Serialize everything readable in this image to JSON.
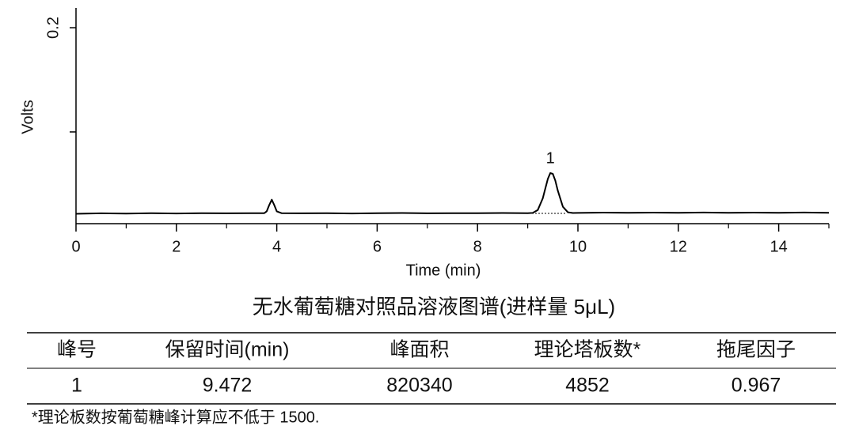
{
  "chart_data": {
    "type": "line",
    "x_label": "Time (min)",
    "y_label": "Volts",
    "x": [
      0,
      0.5,
      1,
      1.5,
      2,
      2.5,
      3,
      3.5,
      3.75,
      3.8,
      3.85,
      3.9,
      3.95,
      4.0,
      4.1,
      4.5,
      5,
      5.5,
      6,
      6.5,
      7,
      7.5,
      8,
      8.5,
      9,
      9.1,
      9.2,
      9.3,
      9.35,
      9.4,
      9.45,
      9.5,
      9.55,
      9.6,
      9.7,
      9.8,
      9.9,
      10,
      10.5,
      11,
      11.5,
      12,
      12.5,
      13,
      13.5,
      14,
      14.5,
      15
    ],
    "values": [
      0.0215,
      0.0219,
      0.0217,
      0.022,
      0.0218,
      0.0221,
      0.0219,
      0.022,
      0.0221,
      0.0238,
      0.0299,
      0.035,
      0.0299,
      0.0238,
      0.022,
      0.0219,
      0.0221,
      0.0218,
      0.022,
      0.0222,
      0.0219,
      0.0221,
      0.022,
      0.0222,
      0.022,
      0.0223,
      0.0251,
      0.0363,
      0.0457,
      0.0549,
      0.0605,
      0.0598,
      0.0532,
      0.0437,
      0.0282,
      0.0229,
      0.0222,
      0.0223,
      0.0226,
      0.0224,
      0.0226,
      0.0225,
      0.0227,
      0.0224,
      0.0226,
      0.0225,
      0.0227,
      0.0224
    ],
    "color": "#000000",
    "xlim": [
      0,
      15
    ],
    "xticks": [
      0,
      2,
      4,
      6,
      8,
      10,
      12,
      14
    ],
    "x_minor_ticks": [
      1,
      3,
      5,
      7,
      9,
      11,
      13,
      15
    ],
    "ylim": [
      0.012,
      0.219
    ],
    "yticks": [
      {
        "value": 0.1,
        "label": null
      },
      0.2
    ],
    "annotations": [
      {
        "text": "1"
      }
    ]
  },
  "caption": "无水葡萄糖对照品溶液图谱(进样量 5μL)",
  "table": {
    "header": [
      "峰号",
      "保留时间(min)",
      "峰面积",
      "理论塔板数*",
      "拖尾因子"
    ],
    "rows": [
      [
        "1",
        "9.472",
        "820340",
        "4852",
        "0.967"
      ]
    ]
  },
  "footnote": "*理论板数按葡萄糖峰计算应不低于 1500."
}
